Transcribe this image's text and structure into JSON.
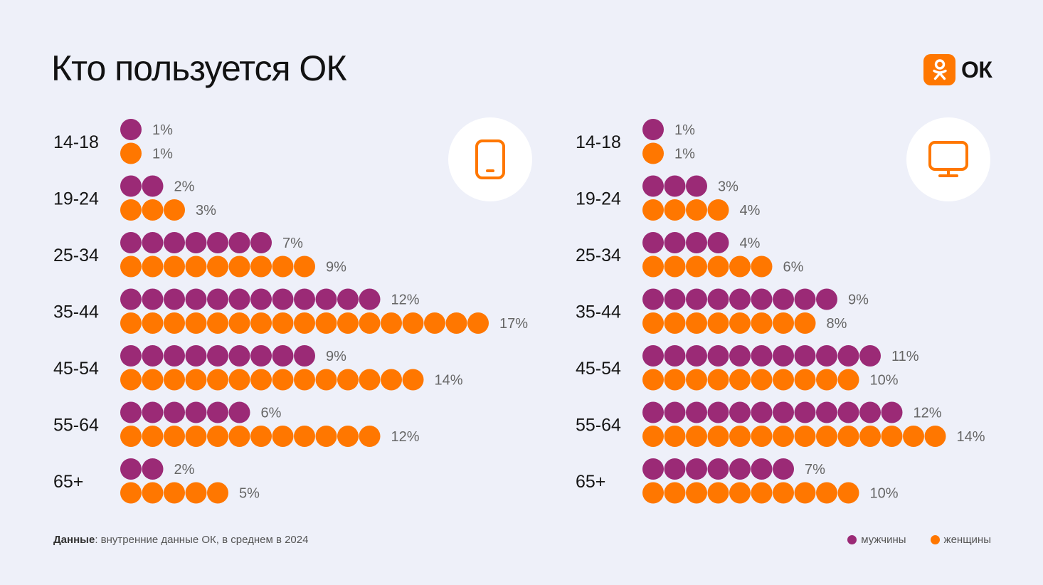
{
  "title": "Кто пользуется ОК",
  "brand": {
    "name": "ОК",
    "icon": "ok-logo-icon",
    "color": "#ff7700"
  },
  "colors": {
    "men": "#9b2a76",
    "women": "#ff7700",
    "icon": "#ff7700"
  },
  "footer": {
    "source_label": "Данные",
    "source_text": ": внутренние данные ОК, в среднем в 2024"
  },
  "legend": {
    "men": "мужчины",
    "women": "женщины"
  },
  "chart_data": [
    {
      "type": "bar",
      "device": "mobile-phone-icon",
      "categories": [
        "14-18",
        "19-24",
        "25-34",
        "35-44",
        "45-54",
        "55-64",
        "65+"
      ],
      "series": [
        {
          "name": "мужчины",
          "values": [
            1,
            2,
            7,
            12,
            9,
            6,
            2
          ],
          "labels": [
            "1%",
            "2%",
            "7%",
            "12%",
            "9%",
            "6%",
            "2%"
          ]
        },
        {
          "name": "женщины",
          "values": [
            1,
            3,
            9,
            17,
            14,
            12,
            5
          ],
          "labels": [
            "1%",
            "3%",
            "9%",
            "17%",
            "14%",
            "12%",
            "5%"
          ]
        }
      ]
    },
    {
      "type": "bar",
      "device": "desktop-monitor-icon",
      "categories": [
        "14-18",
        "19-24",
        "25-34",
        "35-44",
        "45-54",
        "55-64",
        "65+"
      ],
      "series": [
        {
          "name": "мужчины",
          "values": [
            1,
            3,
            4,
            9,
            11,
            12,
            7
          ],
          "labels": [
            "1%",
            "3%",
            "4%",
            "9%",
            "11%",
            "12%",
            "7%"
          ]
        },
        {
          "name": "женщины",
          "values": [
            1,
            4,
            6,
            8,
            10,
            14,
            10
          ],
          "labels": [
            "1%",
            "4%",
            "6%",
            "8%",
            "10%",
            "14%",
            "10%"
          ]
        }
      ]
    }
  ]
}
